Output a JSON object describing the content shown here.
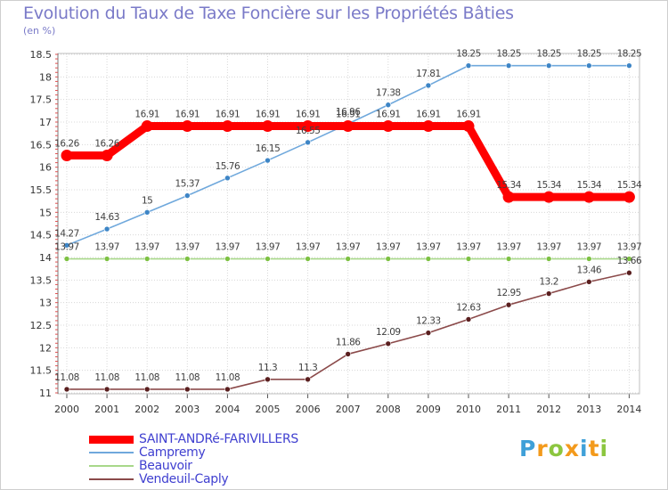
{
  "page": {
    "title": "Evolution du Taux de Taxe Foncière sur les Propriétés Bâties",
    "unit": "(en %)",
    "brand": {
      "letters": [
        "P",
        "r",
        "o",
        "x",
        "i",
        "t",
        "i"
      ],
      "colors": [
        "#3fa0d8",
        "#f39a1c",
        "#8cc63f",
        "#f39a1c",
        "#3fa0d8",
        "#f39a1c",
        "#8cc63f"
      ]
    }
  },
  "chart_data": {
    "type": "line",
    "title": "Evolution du Taux de Taxe Foncière sur les Propriétés Bâties",
    "ylabel": "(en %)",
    "xlabel": "",
    "ylim": [
      11,
      18.5
    ],
    "grid": true,
    "x": [
      "2000",
      "2001",
      "2002",
      "2003",
      "2004",
      "2005",
      "2006",
      "2007",
      "2008",
      "2009",
      "2010",
      "2011",
      "2012",
      "2013",
      "2014"
    ],
    "yticks": [
      11,
      11.5,
      12,
      12.5,
      13,
      13.5,
      14,
      14.5,
      15,
      15.5,
      16,
      16.5,
      17,
      17.5,
      18,
      18.5
    ],
    "ytick_labels": [
      "11",
      "11.5",
      "12",
      "12.5",
      "13",
      "13.5",
      "14",
      "14.5",
      "15",
      "15.5",
      "16",
      "16.5",
      "17",
      "17.5",
      "18",
      "18.5"
    ],
    "series": [
      {
        "name": "Campremy",
        "color": "#6fa8dc",
        "marker_color": "#3d85c6",
        "values": [
          14.27,
          14.63,
          15,
          15.37,
          15.76,
          16.15,
          16.55,
          16.96,
          17.38,
          17.81,
          18.25,
          18.25,
          18.25,
          18.25,
          18.25
        ],
        "labels": [
          "14.27",
          "14.63",
          "15",
          "15.37",
          "15.76",
          "16.15",
          "16.55",
          "16.96",
          "17.38",
          "17.81",
          "18.25",
          "18.25",
          "18.25",
          "18.25",
          "18.25"
        ]
      },
      {
        "name": "Beauvoir",
        "color": "#a8d88a",
        "marker_color": "#7dc142",
        "values": [
          13.97,
          13.97,
          13.97,
          13.97,
          13.97,
          13.97,
          13.97,
          13.97,
          13.97,
          13.97,
          13.97,
          13.97,
          13.97,
          13.97,
          13.97
        ],
        "labels": [
          "13.97",
          "13.97",
          "13.97",
          "13.97",
          "13.97",
          "13.97",
          "13.97",
          "13.97",
          "13.97",
          "13.97",
          "13.97",
          "13.97",
          "13.97",
          "13.97",
          "13.97"
        ]
      },
      {
        "name": "Vendeuil-Caply",
        "color": "#8b4a4a",
        "marker_color": "#5a1f1f",
        "values": [
          11.08,
          11.08,
          11.08,
          11.08,
          11.08,
          11.3,
          11.3,
          11.86,
          12.09,
          12.33,
          12.63,
          12.95,
          13.2,
          13.46,
          13.66
        ],
        "labels": [
          "11.08",
          "11.08",
          "11.08",
          "11.08",
          "11.08",
          "11.3",
          "11.3",
          "11.86",
          "12.09",
          "12.33",
          "12.63",
          "12.95",
          "13.2",
          "13.46",
          "13.66"
        ]
      },
      {
        "name": "SAINT-ANDRé-FARIVILLERS",
        "color": "#ff0000",
        "marker_color": "#ff0000",
        "values": [
          16.26,
          16.26,
          16.91,
          16.91,
          16.91,
          16.91,
          16.91,
          16.91,
          16.91,
          16.91,
          16.91,
          15.34,
          15.34,
          15.34,
          15.34
        ],
        "labels": [
          "16.26",
          "16.26",
          "16.91",
          "16.91",
          "16.91",
          "16.91",
          "16.91",
          "16.91",
          "16.91",
          "16.91",
          "16.91",
          "15.34",
          "15.34",
          "15.34",
          "15.34"
        ]
      }
    ],
    "legend": [
      {
        "name": "SAINT-ANDRé-FARIVILLERS",
        "color": "#ff0000",
        "weight": "thick"
      },
      {
        "name": "Campremy",
        "color": "#6fa8dc",
        "weight": "thin"
      },
      {
        "name": "Beauvoir",
        "color": "#a8d88a",
        "weight": "thin"
      },
      {
        "name": "Vendeuil-Caply",
        "color": "#8b4a4a",
        "weight": "thin"
      }
    ],
    "legend_position": "bottom-left"
  }
}
